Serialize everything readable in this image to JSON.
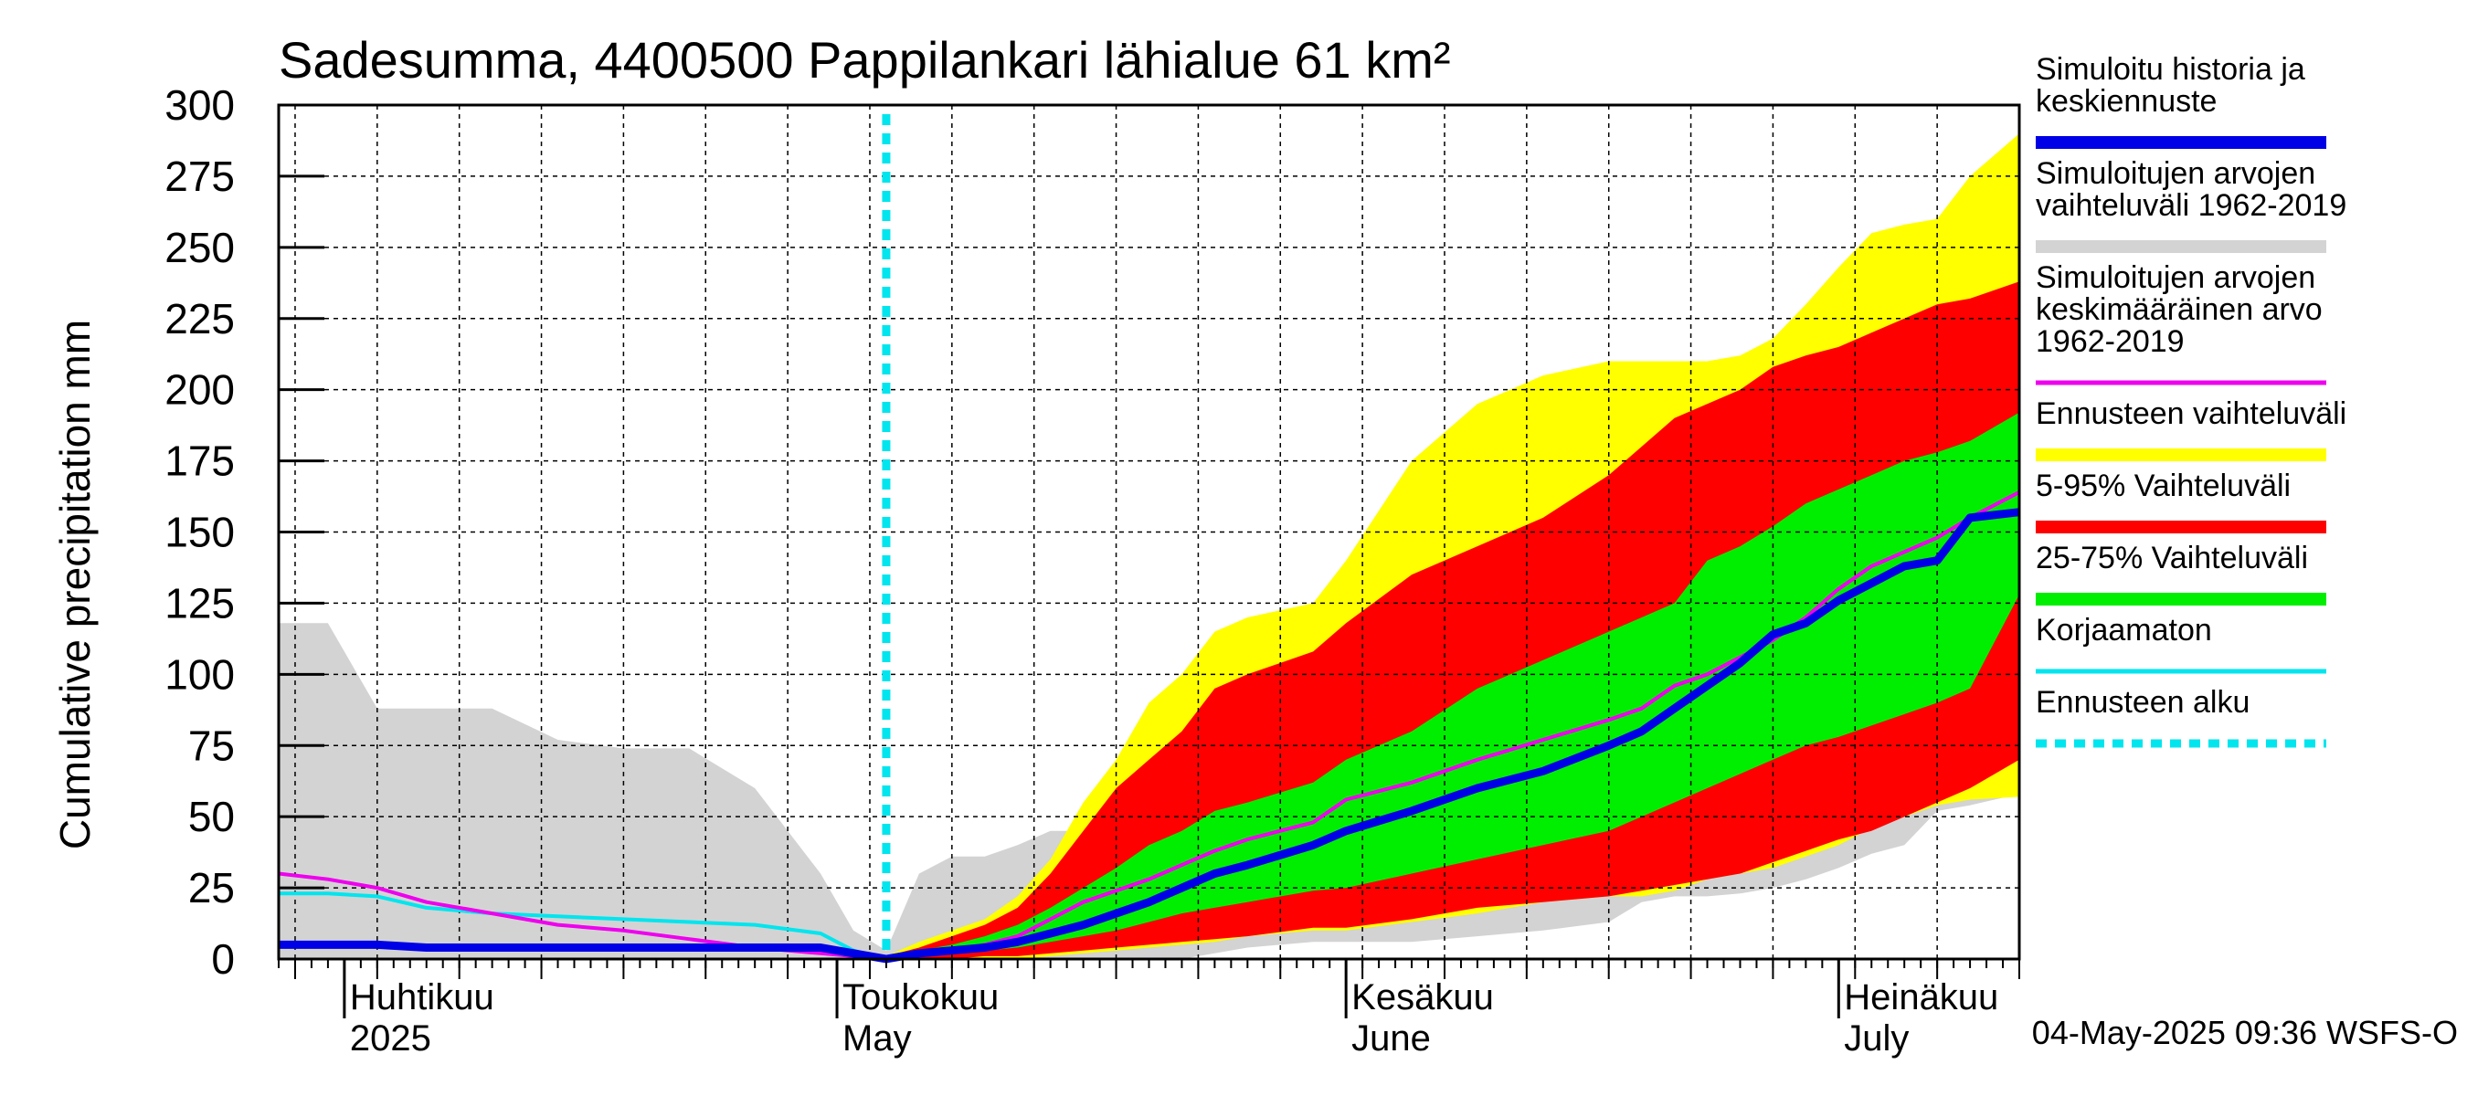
{
  "chart_data": {
    "type": "area",
    "title": "Sadesumma, 4400500 Pappilankari lähialue 61 km²",
    "xlabel": "",
    "ylabel": "Cumulative precipitation   mm",
    "ylim": [
      0,
      300
    ],
    "yticks": [
      0,
      25,
      50,
      75,
      100,
      125,
      150,
      175,
      200,
      225,
      250,
      275,
      300
    ],
    "x_unit": "day of year 2025",
    "xlim": [
      87,
      193
    ],
    "grid": true,
    "legend_placement": "right",
    "month_labels": [
      {
        "day": 91,
        "fi": "Huhtikuu",
        "en": "2025"
      },
      {
        "day": 121,
        "fi": "Toukokuu",
        "en": "May"
      },
      {
        "day": 152,
        "fi": "Kesäkuu",
        "en": "June"
      },
      {
        "day": 182,
        "fi": "Heinäkuu",
        "en": "July"
      }
    ],
    "month_starts": [
      91,
      121,
      152,
      182
    ],
    "forecast_start_day": 124,
    "footer": "04-May-2025 09:36 WSFS-O",
    "colors": {
      "history": "#0000e6",
      "hist_range": "#d3d3d3",
      "hist_mean": "#ee00ee",
      "forecast_range": "#ffff00",
      "p5_95": "#ff0000",
      "p25_75": "#00ee00",
      "uncorrected": "#00e5ee",
      "forecast_start": "#00e5ee"
    },
    "series": [
      {
        "name": "Simuloitujen arvojen vaihteluväli 1962-2019",
        "key": "hist_range",
        "kind": "band",
        "x": [
          87,
          90,
          93,
          96,
          100,
          104,
          108,
          112,
          116,
          120,
          122,
          124,
          126,
          128,
          130,
          132,
          134,
          136,
          138,
          140,
          142,
          144,
          146,
          150,
          152,
          156,
          160,
          164,
          168,
          170,
          172,
          174,
          176,
          178,
          180,
          182,
          184,
          186,
          188,
          190,
          193
        ],
        "upper": [
          118,
          118,
          88,
          88,
          88,
          77,
          74,
          74,
          60,
          30,
          10,
          3,
          30,
          36,
          36,
          40,
          45,
          45,
          68,
          88,
          88,
          100,
          100,
          100,
          120,
          140,
          147,
          148,
          162,
          168,
          192,
          195,
          195,
          210,
          215,
          225,
          230,
          237,
          248,
          258,
          268
        ],
        "lower": [
          0,
          0,
          0,
          0,
          0,
          0,
          0,
          0,
          0,
          0,
          0,
          0,
          0,
          0,
          0,
          0,
          0,
          0,
          0,
          0,
          0,
          2,
          4,
          6,
          6,
          6,
          8,
          10,
          13,
          20,
          22,
          22,
          23,
          25,
          28,
          32,
          37,
          40,
          52,
          54,
          58
        ]
      },
      {
        "name": "Ennusteen vaihteluväli",
        "key": "forecast_range",
        "kind": "band",
        "x": [
          124,
          126,
          128,
          130,
          132,
          134,
          136,
          138,
          140,
          142,
          144,
          146,
          150,
          152,
          156,
          160,
          164,
          168,
          170,
          172,
          174,
          176,
          178,
          180,
          182,
          184,
          186,
          188,
          190,
          193
        ],
        "upper": [
          1,
          6,
          10,
          14,
          22,
          35,
          55,
          70,
          90,
          100,
          115,
          120,
          125,
          140,
          175,
          195,
          205,
          210,
          210,
          210,
          210,
          212,
          218,
          230,
          243,
          255,
          258,
          260,
          275,
          290
        ],
        "lower": [
          0,
          0,
          0,
          0,
          0,
          1,
          2,
          3,
          4,
          5,
          6,
          8,
          10,
          10,
          13,
          16,
          20,
          22,
          22,
          24,
          28,
          30,
          32,
          36,
          40,
          46,
          50,
          54,
          56,
          57
        ]
      },
      {
        "name": "5-95% Vaihteluväli",
        "key": "p5_95",
        "kind": "band",
        "x": [
          124,
          126,
          128,
          130,
          132,
          134,
          136,
          138,
          140,
          142,
          144,
          146,
          150,
          152,
          156,
          160,
          164,
          168,
          170,
          172,
          174,
          176,
          178,
          180,
          182,
          184,
          186,
          188,
          190,
          193
        ],
        "upper": [
          1,
          4,
          8,
          12,
          18,
          30,
          45,
          60,
          70,
          80,
          95,
          100,
          108,
          118,
          135,
          145,
          155,
          170,
          180,
          190,
          195,
          200,
          208,
          212,
          215,
          220,
          225,
          230,
          232,
          238
        ],
        "lower": [
          0,
          0,
          0,
          1,
          1,
          2,
          3,
          4,
          5,
          6,
          7,
          8,
          11,
          11,
          14,
          18,
          20,
          22,
          24,
          26,
          28,
          30,
          34,
          38,
          42,
          45,
          50,
          55,
          60,
          70
        ]
      },
      {
        "name": "25-75% Vaihteluväli",
        "key": "p25_75",
        "kind": "band",
        "x": [
          124,
          126,
          128,
          130,
          132,
          134,
          136,
          138,
          140,
          142,
          144,
          146,
          150,
          152,
          156,
          160,
          164,
          168,
          170,
          172,
          174,
          176,
          178,
          180,
          182,
          184,
          186,
          188,
          190,
          193
        ],
        "upper": [
          1,
          3,
          5,
          8,
          12,
          18,
          25,
          32,
          40,
          45,
          52,
          55,
          62,
          70,
          80,
          95,
          105,
          115,
          120,
          125,
          140,
          145,
          152,
          160,
          165,
          170,
          175,
          178,
          182,
          192
        ],
        "lower": [
          0,
          1,
          2,
          3,
          4,
          6,
          8,
          10,
          13,
          16,
          18,
          20,
          24,
          25,
          30,
          35,
          40,
          45,
          50,
          55,
          60,
          65,
          70,
          75,
          78,
          82,
          86,
          90,
          95,
          128
        ]
      },
      {
        "name": "Simuloitujen arvojen keskimääräinen arvo 1962-2019",
        "key": "hist_mean",
        "kind": "line",
        "x": [
          87,
          90,
          93,
          96,
          100,
          104,
          108,
          112,
          116,
          120,
          122,
          124,
          126,
          128,
          130,
          132,
          134,
          136,
          138,
          140,
          142,
          144,
          146,
          150,
          152,
          156,
          160,
          164,
          168,
          170,
          172,
          174,
          176,
          178,
          180,
          182,
          184,
          186,
          188,
          190,
          193
        ],
        "y": [
          30,
          28,
          25,
          20,
          16,
          12,
          10,
          7,
          4,
          2,
          1,
          0,
          2,
          3,
          5,
          8,
          14,
          20,
          24,
          28,
          33,
          38,
          42,
          48,
          56,
          62,
          70,
          77,
          84,
          88,
          96,
          100,
          106,
          112,
          120,
          130,
          138,
          143,
          148,
          155,
          164
        ]
      },
      {
        "name": "Korjaamaton",
        "key": "uncorrected",
        "kind": "line",
        "x": [
          87,
          90,
          93,
          96,
          100,
          104,
          108,
          112,
          116,
          120,
          122,
          124
        ],
        "y": [
          23,
          23,
          22,
          18,
          16,
          15,
          14,
          13,
          12,
          9,
          3,
          0
        ]
      },
      {
        "name": "Simuloitu historia ja keskiennuste",
        "key": "history",
        "kind": "line",
        "x": [
          87,
          90,
          93,
          96,
          100,
          104,
          108,
          112,
          116,
          120,
          122,
          124,
          126,
          128,
          130,
          132,
          134,
          136,
          138,
          140,
          142,
          144,
          146,
          150,
          152,
          156,
          160,
          164,
          168,
          170,
          172,
          174,
          176,
          178,
          180,
          182,
          184,
          186,
          188,
          190,
          193
        ],
        "y": [
          5,
          5,
          5,
          4,
          4,
          4,
          4,
          4,
          4,
          4,
          2,
          0,
          2,
          3,
          4,
          6,
          9,
          12,
          16,
          20,
          25,
          30,
          33,
          40,
          45,
          52,
          60,
          66,
          75,
          80,
          88,
          96,
          104,
          114,
          118,
          126,
          132,
          138,
          140,
          155,
          157
        ]
      }
    ]
  },
  "legend": [
    {
      "label_lines": [
        "Simuloitu historia ja",
        "keskiennuste"
      ],
      "key": "history",
      "style": "thick"
    },
    {
      "label_lines": [
        "Simuloitujen arvojen",
        "vaihteluväli 1962-2019"
      ],
      "key": "hist_range",
      "style": "thick"
    },
    {
      "label_lines": [
        "Simuloitujen arvojen",
        "keskimääräinen arvo",
        "   1962-2019"
      ],
      "key": "hist_mean",
      "style": "thin"
    },
    {
      "label_lines": [
        "Ennusteen vaihteluväli"
      ],
      "key": "forecast_range",
      "style": "thick"
    },
    {
      "label_lines": [
        "5-95% Vaihteluväli"
      ],
      "key": "p5_95",
      "style": "thick"
    },
    {
      "label_lines": [
        "25-75% Vaihteluväli"
      ],
      "key": "p25_75",
      "style": "thick"
    },
    {
      "label_lines": [
        "Korjaamaton"
      ],
      "key": "uncorrected",
      "style": "thin"
    },
    {
      "label_lines": [
        "Ennusteen alku"
      ],
      "key": "forecast_start",
      "style": "dotted"
    }
  ]
}
